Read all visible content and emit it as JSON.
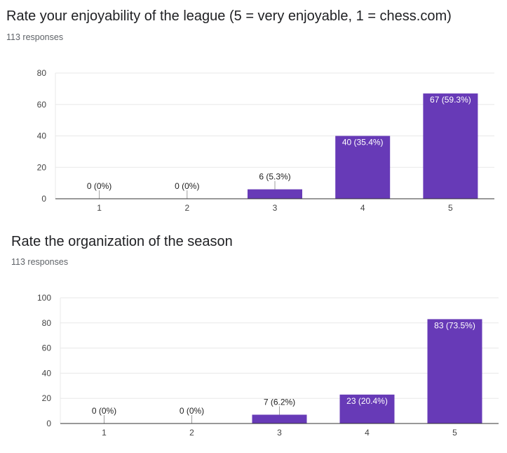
{
  "questions": [
    {
      "title": "Rate your enjoyability of the league (5 = very enjoyable, 1 = chess.com)",
      "responses": "113 responses"
    },
    {
      "title": "Rate the organization of the season",
      "responses": "113 responses"
    }
  ],
  "colors": {
    "bar": "#673ab7",
    "grid": "#e8e8e8",
    "axis": "#333333",
    "tick_text": "#444444"
  },
  "chart_data": [
    {
      "type": "bar",
      "categories": [
        "1",
        "2",
        "3",
        "4",
        "5"
      ],
      "values": [
        0,
        0,
        6,
        40,
        67
      ],
      "labels": [
        "0 (0%)",
        "0 (0%)",
        "6 (5.3%)",
        "40 (35.4%)",
        "67 (59.3%)"
      ],
      "ylim": [
        0,
        80
      ],
      "yticks": [
        0,
        20,
        40,
        60,
        80
      ],
      "grid": true
    },
    {
      "type": "bar",
      "categories": [
        "1",
        "2",
        "3",
        "4",
        "5"
      ],
      "values": [
        0,
        0,
        7,
        23,
        83
      ],
      "labels": [
        "0 (0%)",
        "0 (0%)",
        "7 (6.2%)",
        "23 (20.4%)",
        "83 (73.5%)"
      ],
      "ylim": [
        0,
        100
      ],
      "yticks": [
        0,
        20,
        40,
        60,
        80,
        100
      ],
      "grid": true
    }
  ]
}
